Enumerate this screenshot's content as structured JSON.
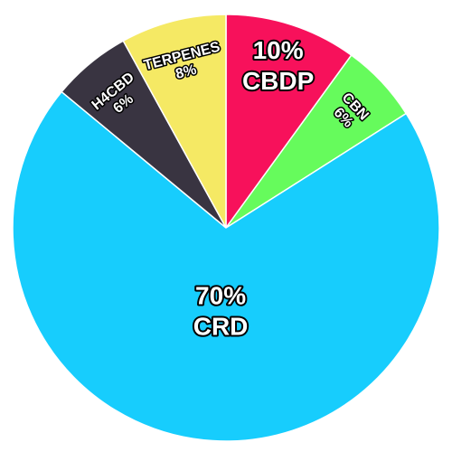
{
  "chart_data": {
    "type": "pie",
    "categories": [
      "CBDP",
      "CBN",
      "CRD",
      "H4CBD",
      "TERPENES"
    ],
    "values": [
      10,
      6,
      70,
      6,
      8
    ],
    "value_labels": [
      "10%",
      "6%",
      "70%",
      "6%",
      "8%"
    ],
    "colors": [
      "#f7115b",
      "#66fb5c",
      "#17cdfd",
      "#393441",
      "#f5e964"
    ]
  }
}
